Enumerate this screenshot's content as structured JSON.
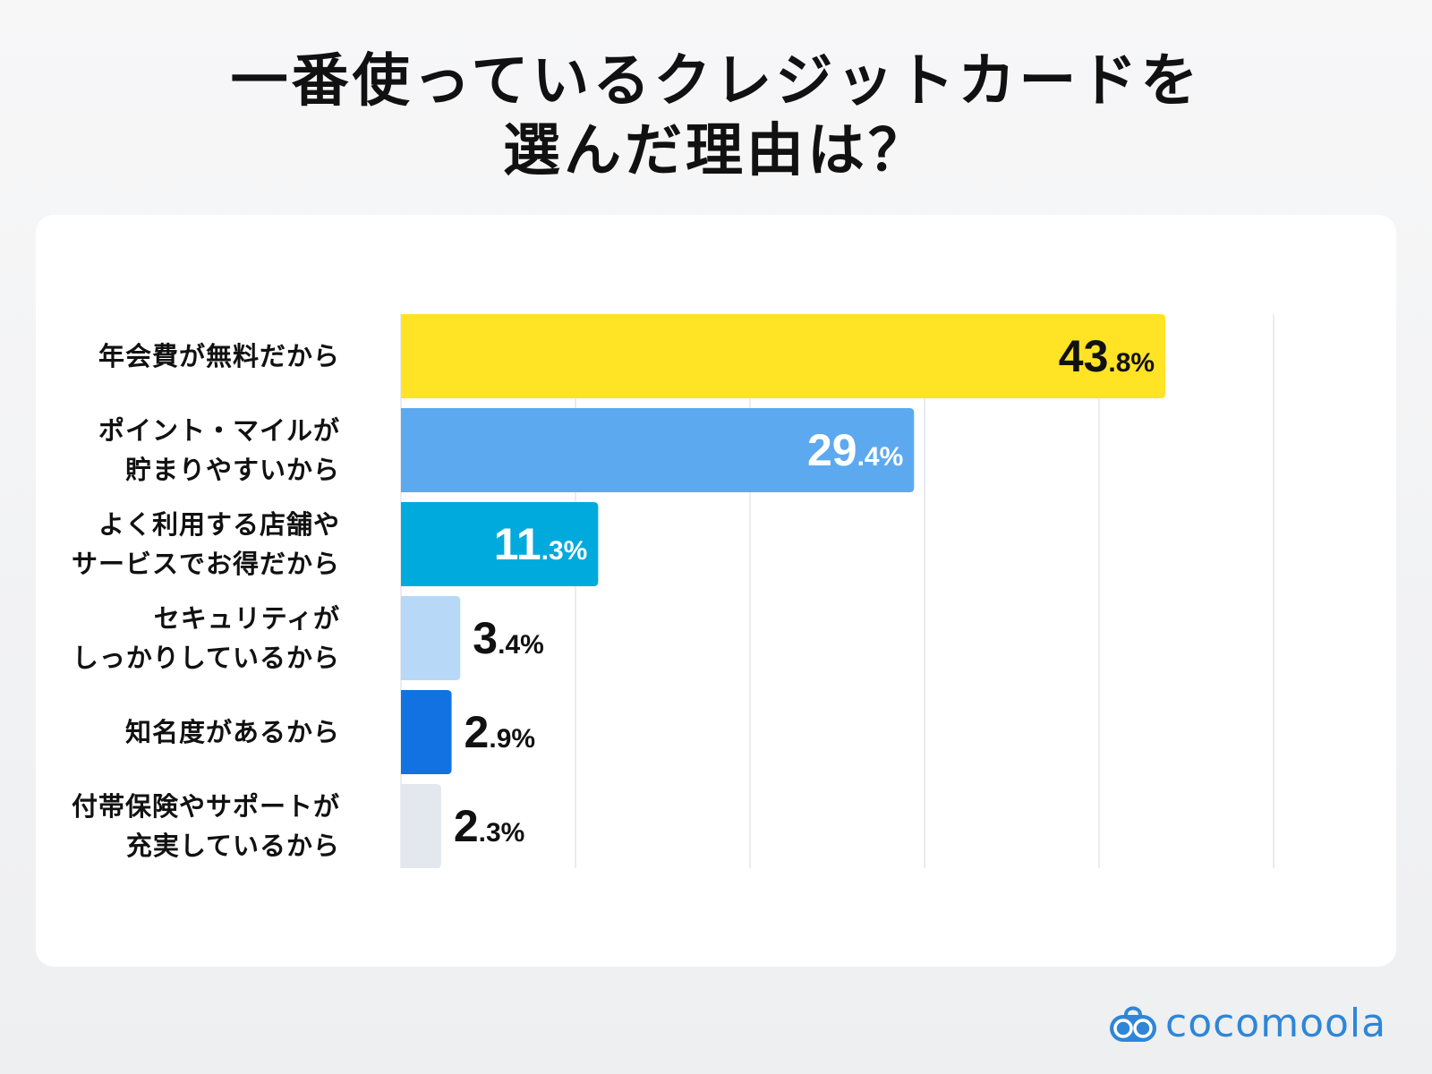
{
  "chart_data": {
    "type": "bar",
    "orientation": "horizontal",
    "title_lines": [
      "一番使っているクレジットカードを",
      "選んだ理由は？"
    ],
    "categories": [
      "年会費が無料だから",
      "ポイント・マイルが\n貯まりやすいから",
      "よく利用する店舗や\nサービスでお得だから",
      "セキュリティが\nしっかりしているから",
      "知名度があるから",
      "付帯保険やサポートが\n充実しているから"
    ],
    "values": [
      43.8,
      29.4,
      11.3,
      3.4,
      2.9,
      2.3
    ],
    "value_labels": [
      {
        "int": "43",
        "dec": ".8%"
      },
      {
        "int": "29",
        "dec": ".4%"
      },
      {
        "int": "11",
        "dec": ".3%"
      },
      {
        "int": "3",
        "dec": ".4%"
      },
      {
        "int": "2",
        "dec": ".9%"
      },
      {
        "int": "2",
        "dec": ".3%"
      }
    ],
    "colors": [
      "#ffe324",
      "#5ca9f0",
      "#00aadd",
      "#b8d8f8",
      "#1272e2",
      "#e3e7ee"
    ],
    "label_inside": [
      true,
      true,
      true,
      false,
      false,
      false
    ],
    "label_colors": [
      "#111111",
      "#ffffff",
      "#ffffff",
      "#111111",
      "#111111",
      "#111111"
    ],
    "xlim": [
      0,
      50
    ],
    "grid": true,
    "xlabel": "",
    "ylabel": ""
  },
  "brand": {
    "name": "cocomoola",
    "color": "#2f86d6"
  }
}
